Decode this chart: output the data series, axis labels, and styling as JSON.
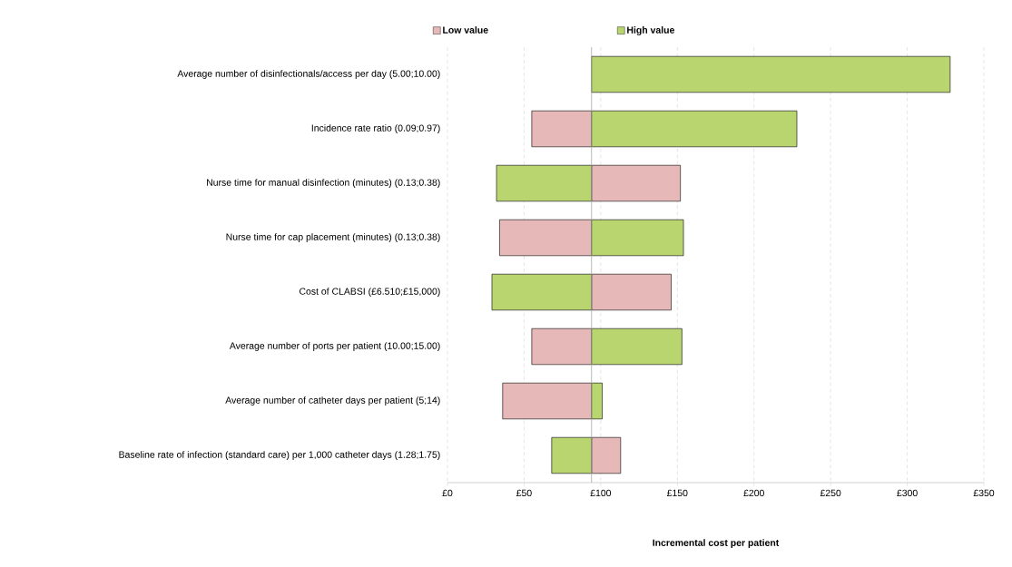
{
  "chart_data": {
    "type": "bar",
    "orientation": "horizontal",
    "xlabel": "Incremental cost per patient",
    "categories": [
      "Average number of disinfectionals/access per day (5.00;10.00)",
      "Incidence rate ratio  (0.09;0.97)",
      "Nurse time for manual disinfection (minutes) (0.13;0.38)",
      "Nurse time for cap placement (minutes) (0.13;0.38)",
      "Cost of CLABSI (£6.510;£15,000)",
      "Average number of ports per patient (10.00;15.00)",
      "Average number of catheter days per patient (5;14)",
      "Baseline rate of infection (standard care) per 1,000 catheter days (1.28;1.75)"
    ],
    "series": [
      {
        "name": "Low value",
        "color": "#e6b8b7",
        "base": [
          null,
          55,
          94,
          34,
          94,
          55,
          36,
          94
        ],
        "values": [
          null,
          39,
          58,
          60,
          52,
          39,
          58,
          19
        ]
      },
      {
        "name": "High value",
        "color": "#b8d56f",
        "base": [
          94,
          94,
          32,
          94,
          29,
          94,
          94,
          68
        ],
        "values": [
          234,
          134,
          62,
          60,
          65,
          59,
          7,
          26
        ]
      }
    ],
    "xlim": [
      0,
      350
    ],
    "xticks": [
      {
        "value": 0,
        "label": "£0"
      },
      {
        "value": 50,
        "label": "£50"
      },
      {
        "value": 100,
        "label": "£100"
      },
      {
        "value": 150,
        "label": "£150"
      },
      {
        "value": 200,
        "label": "£200"
      },
      {
        "value": 250,
        "label": "£250"
      },
      {
        "value": 300,
        "label": "£300"
      },
      {
        "value": 350,
        "label": "£350"
      }
    ],
    "ref_lines": [
      {
        "axis": "x",
        "value": 94,
        "color": "#a6a6a6"
      }
    ],
    "grid": "x",
    "legend": "top"
  }
}
